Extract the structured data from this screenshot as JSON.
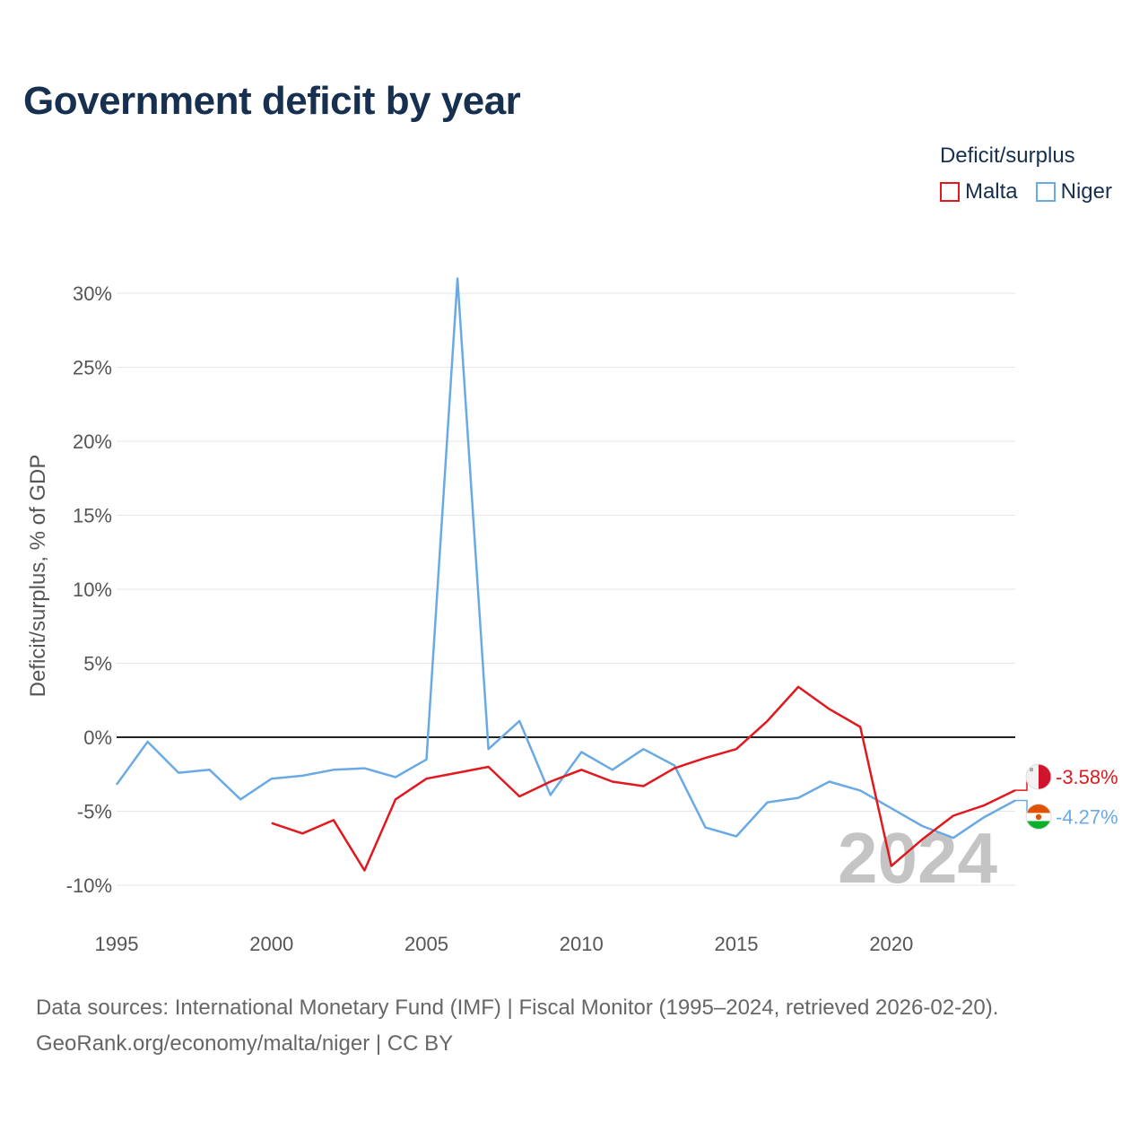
{
  "title": "Government deficit by year",
  "legend": {
    "title": "Deficit/surplus",
    "items": [
      {
        "label": "Malta",
        "color": "#e0191f"
      },
      {
        "label": "Niger",
        "color": "#6aaae4"
      }
    ]
  },
  "chart_data": {
    "type": "line",
    "title": "Government deficit by year",
    "xlabel": "",
    "ylabel": "Deficit/surplus, % of GDP",
    "xlim": [
      1995,
      2024
    ],
    "ylim": [
      -12,
      31
    ],
    "x_ticks": [
      1995,
      2000,
      2005,
      2010,
      2015,
      2020
    ],
    "y_ticks": [
      -10,
      -5,
      0,
      5,
      10,
      15,
      20,
      25,
      30
    ],
    "y_tick_labels": [
      "-10%",
      "-5%",
      "0%",
      "5%",
      "10%",
      "15%",
      "20%",
      "25%",
      "30%"
    ],
    "grid": true,
    "watermark_year": "2024",
    "series": [
      {
        "name": "Malta",
        "color": "#e0191f",
        "x": [
          2000,
          2001,
          2002,
          2003,
          2004,
          2005,
          2006,
          2007,
          2008,
          2009,
          2010,
          2011,
          2012,
          2013,
          2014,
          2015,
          2016,
          2017,
          2018,
          2019,
          2020,
          2021,
          2022,
          2023,
          2024
        ],
        "values": [
          -5.8,
          -6.5,
          -5.6,
          -9.0,
          -4.2,
          -2.8,
          -2.4,
          -2.0,
          -4.0,
          -3.0,
          -2.2,
          -3.0,
          -3.3,
          -2.1,
          -1.4,
          -0.8,
          1.1,
          3.4,
          1.9,
          0.7,
          -8.7,
          -6.9,
          -5.3,
          -4.6,
          -3.58
        ],
        "end_label": "-3.58%"
      },
      {
        "name": "Niger",
        "color": "#6aaae4",
        "x": [
          1995,
          1996,
          1997,
          1998,
          1999,
          2000,
          2001,
          2002,
          2003,
          2004,
          2005,
          2006,
          2007,
          2008,
          2009,
          2010,
          2011,
          2012,
          2013,
          2014,
          2015,
          2016,
          2017,
          2018,
          2019,
          2020,
          2021,
          2022,
          2023,
          2024
        ],
        "values": [
          -3.2,
          -0.3,
          -2.4,
          -2.2,
          -4.2,
          -2.8,
          -2.6,
          -2.2,
          -2.1,
          -2.7,
          -1.5,
          31.0,
          -0.8,
          1.1,
          -3.9,
          -1.0,
          -2.2,
          -0.8,
          -1.9,
          -6.1,
          -6.7,
          -4.4,
          -4.1,
          -3.0,
          -3.6,
          -4.8,
          -6.0,
          -6.8,
          -5.4,
          -4.27
        ],
        "end_label": "-4.27%"
      }
    ]
  },
  "footer": {
    "line1": "Data sources: International Monetary Fund (IMF) | Fiscal Monitor (1995–2024, retrieved 2026-02-20).",
    "line2": "GeoRank.org/economy/malta/niger | CC BY"
  }
}
